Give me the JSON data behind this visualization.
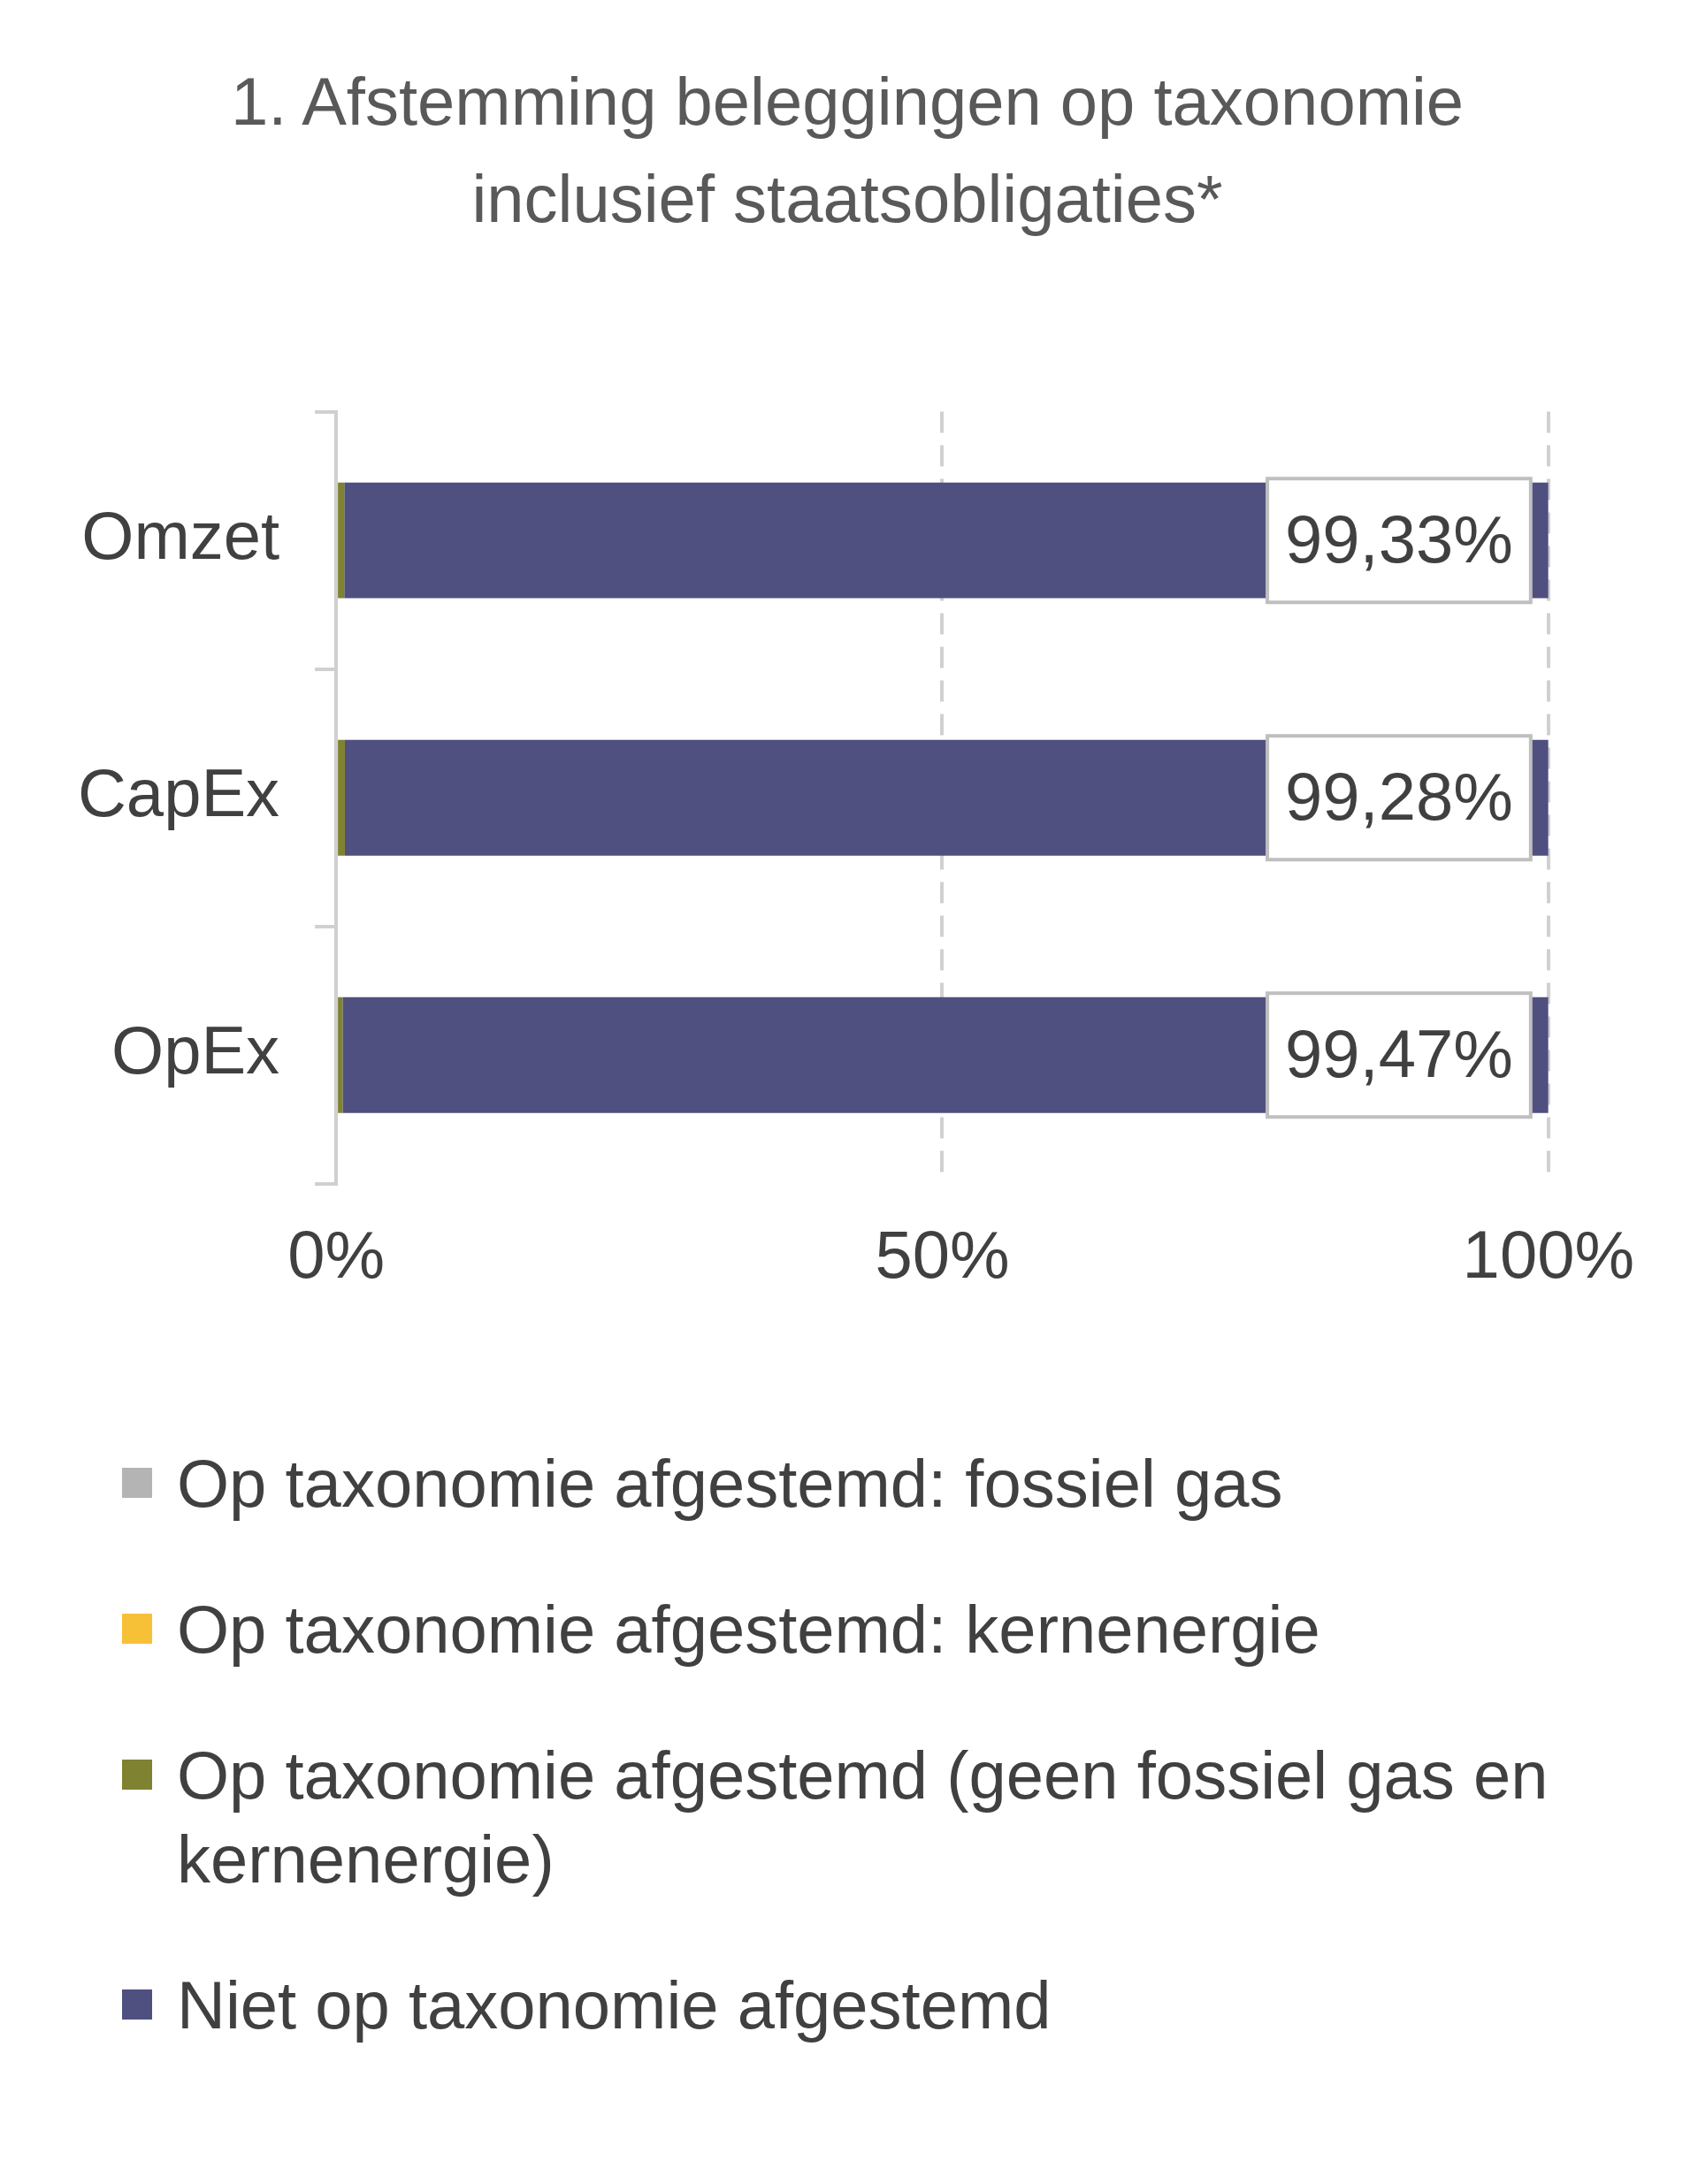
{
  "chart_data": {
    "type": "bar",
    "orientation": "horizontal",
    "stacked": true,
    "title": "1. Afstemming  beleggingen op taxonomie inclusief staatsobligaties*",
    "categories": [
      "Omzet",
      "CapEx",
      "OpEx"
    ],
    "series": [
      {
        "name": "Op taxonomie afgestemd: fossiel gas",
        "color": "#b4b4b4",
        "values": [
          0,
          0,
          0
        ]
      },
      {
        "name": "Op taxonomie afgestemd: kernenergie",
        "color": "#f7c137",
        "values": [
          0,
          0,
          0
        ]
      },
      {
        "name": "Op taxonomie afgestemd (geen fossiel gas en kernenergie)",
        "color": "#7f8231",
        "values": [
          0.67,
          0.72,
          0.53
        ]
      },
      {
        "name": "Niet op taxonomie afgestemd",
        "color": "#4f5080",
        "values": [
          99.33,
          99.28,
          99.47
        ],
        "value_labels": [
          "99,33%",
          "99,28%",
          "99,47%"
        ]
      }
    ],
    "xlim": [
      0,
      100
    ],
    "xticks": [
      {
        "value": 0,
        "label": "0%"
      },
      {
        "value": 50,
        "label": "50%"
      },
      {
        "value": 100,
        "label": "100%"
      }
    ],
    "grid": "x",
    "legend": "bottom"
  }
}
